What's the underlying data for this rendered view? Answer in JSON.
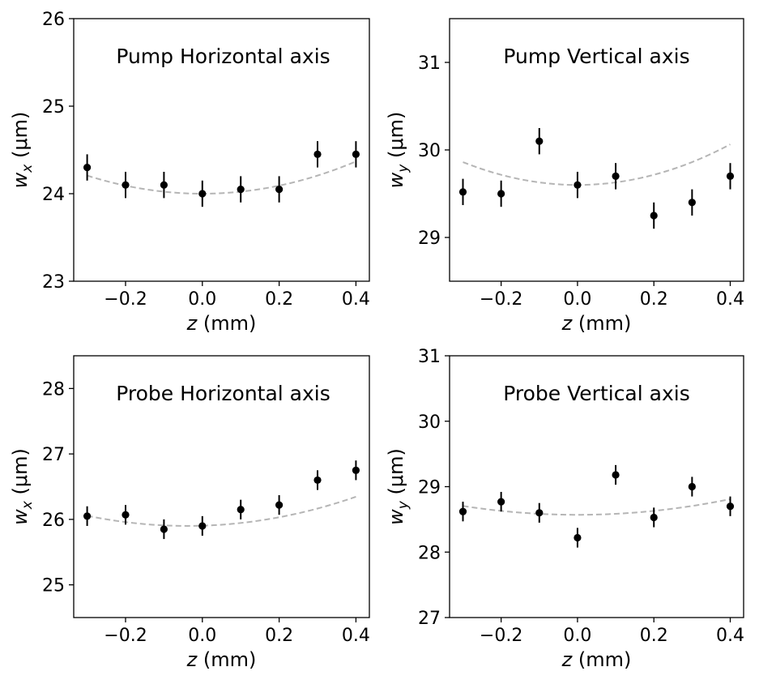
{
  "xlabel": "z (mm)",
  "chart_data": [
    {
      "type": "scatter",
      "title": "Pump Horizontal axis",
      "xlabel": "z (mm)",
      "ylabel_var": "w",
      "ylabel_sub": "x",
      "ylabel_unit": "(μm)",
      "xlim": [
        -0.335,
        0.435
      ],
      "ylim": [
        23,
        26
      ],
      "xticks": [
        -0.2,
        0.0,
        0.2,
        0.4
      ],
      "xtick_labels": [
        "−0.2",
        "0.0",
        "0.2",
        "0.4"
      ],
      "yticks": [
        23,
        24,
        25,
        26
      ],
      "ytick_labels": [
        "23",
        "24",
        "25",
        "26"
      ],
      "points": {
        "x": [
          -0.3,
          -0.2,
          -0.1,
          0.0,
          0.1,
          0.2,
          0.3,
          0.4
        ],
        "y": [
          24.3,
          24.1,
          24.1,
          24.0,
          24.05,
          24.05,
          24.45,
          24.45
        ],
        "yerr": [
          0.15,
          0.15,
          0.15,
          0.15,
          0.15,
          0.15,
          0.15,
          0.15
        ]
      },
      "fit": {
        "x_range": [
          -0.3,
          0.4
        ],
        "x0": 0.0,
        "y0": 24.0,
        "a": 2.3
      }
    },
    {
      "type": "scatter",
      "title": "Pump Vertical axis",
      "xlabel": "z (mm)",
      "ylabel_var": "w",
      "ylabel_sub": "y",
      "ylabel_unit": "(μm)",
      "xlim": [
        -0.335,
        0.435
      ],
      "ylim": [
        28.5,
        31.5
      ],
      "xticks": [
        -0.2,
        0.0,
        0.2,
        0.4
      ],
      "xtick_labels": [
        "−0.2",
        "0.0",
        "0.2",
        "0.4"
      ],
      "yticks": [
        29,
        30,
        31
      ],
      "ytick_labels": [
        "29",
        "30",
        "31"
      ],
      "points": {
        "x": [
          -0.3,
          -0.2,
          -0.1,
          0.0,
          0.1,
          0.2,
          0.3,
          0.4
        ],
        "y": [
          29.52,
          29.5,
          30.1,
          29.6,
          29.7,
          29.25,
          29.4,
          29.7
        ],
        "yerr": [
          0.15,
          0.15,
          0.15,
          0.15,
          0.15,
          0.15,
          0.15,
          0.15
        ]
      },
      "fit": {
        "x_range": [
          -0.3,
          0.4
        ],
        "x0": 0.0,
        "y0": 29.6,
        "a": 2.9
      }
    },
    {
      "type": "scatter",
      "title": "Probe Horizontal axis",
      "xlabel": "z (mm)",
      "ylabel_var": "w",
      "ylabel_sub": "x",
      "ylabel_unit": "(μm)",
      "xlim": [
        -0.335,
        0.435
      ],
      "ylim": [
        24.5,
        28.5
      ],
      "xticks": [
        -0.2,
        0.0,
        0.2,
        0.4
      ],
      "xtick_labels": [
        "−0.2",
        "0.0",
        "0.2",
        "0.4"
      ],
      "yticks": [
        25,
        26,
        27,
        28
      ],
      "ytick_labels": [
        "25",
        "26",
        "27",
        "28"
      ],
      "points": {
        "x": [
          -0.3,
          -0.2,
          -0.1,
          0.0,
          0.1,
          0.2,
          0.3,
          0.4
        ],
        "y": [
          26.05,
          26.07,
          25.85,
          25.9,
          26.15,
          26.22,
          26.6,
          26.75
        ],
        "yerr": [
          0.15,
          0.15,
          0.15,
          0.15,
          0.15,
          0.15,
          0.15,
          0.15
        ]
      },
      "fit": {
        "x_range": [
          -0.3,
          0.4
        ],
        "x0": -0.04,
        "y0": 25.9,
        "a": 2.3
      }
    },
    {
      "type": "scatter",
      "title": "Probe Vertical axis",
      "xlabel": "z (mm)",
      "ylabel_var": "w",
      "ylabel_sub": "y",
      "ylabel_unit": "(μm)",
      "xlim": [
        -0.335,
        0.435
      ],
      "ylim": [
        27,
        31
      ],
      "xticks": [
        -0.2,
        0.0,
        0.2,
        0.4
      ],
      "xtick_labels": [
        "−0.2",
        "0.0",
        "0.2",
        "0.4"
      ],
      "yticks": [
        27,
        28,
        29,
        30,
        31
      ],
      "ytick_labels": [
        "27",
        "28",
        "29",
        "30",
        "31"
      ],
      "points": {
        "x": [
          -0.3,
          -0.2,
          -0.1,
          0.0,
          0.1,
          0.2,
          0.3,
          0.4
        ],
        "y": [
          28.62,
          28.77,
          28.6,
          28.22,
          29.18,
          28.53,
          29.0,
          28.7
        ],
        "yerr": [
          0.15,
          0.15,
          0.15,
          0.15,
          0.15,
          0.15,
          0.15,
          0.15
        ]
      },
      "fit": {
        "x_range": [
          -0.3,
          0.4
        ],
        "x0": 0.0,
        "y0": 28.57,
        "a": 1.5
      }
    }
  ]
}
